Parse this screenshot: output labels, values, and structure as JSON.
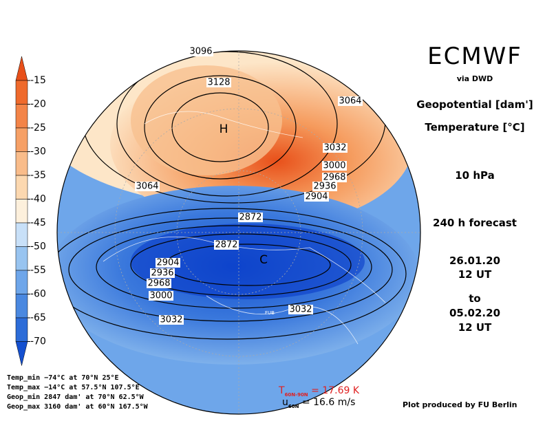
{
  "header": {
    "model": "ECMWF",
    "source": "via DWD",
    "field1": "Geopotential [dam']",
    "field2": "Temperature [°C]",
    "level": "10 hPa",
    "forecast": "240 h forecast",
    "start_date": "26.01.20",
    "start_time": "12 UT",
    "to": "to",
    "end_date": "05.02.20",
    "end_time": "12 UT"
  },
  "legend": {
    "labels": [
      -15,
      -20,
      -25,
      -30,
      -35,
      -40,
      -45,
      -50,
      -55,
      -60,
      -65,
      -70
    ],
    "colors": [
      "#e8501a",
      "#ef6a2c",
      "#f38448",
      "#f6a066",
      "#f9bc8a",
      "#fcd8b0",
      "#fdf0dc",
      "#c8e0f8",
      "#98c4f0",
      "#6ea6ea",
      "#4a88e0",
      "#2c6cd8",
      "#1450d0"
    ]
  },
  "map": {
    "contour_labels": [
      "3096",
      "3128",
      "3064",
      "3032",
      "3000",
      "2968",
      "2936",
      "2904",
      "3064",
      "2872",
      "2872",
      "2904",
      "2936",
      "2968",
      "3000",
      "3032",
      "3032"
    ],
    "markers": [
      "H",
      "C",
      "FUB"
    ]
  },
  "stats": [
    "Temp_min −74°C at 70°N 25°E",
    "Temp_max −14°C at 57.5°N 107.5°E",
    "Geop_min 2847 dam' at 70°N 62.5°W",
    "Geop_max 3160 dam' at 60°N 167.5°W"
  ],
  "indices": {
    "temperature": {
      "symbol": "T",
      "subscript": "60N-90N",
      "text": "= 17.69 K"
    },
    "wind": {
      "symbol": "u",
      "subscript": "60N",
      "text": "= 16.6 m/s"
    }
  },
  "footer": {
    "credit": "Plot produced by FU Berlin"
  }
}
